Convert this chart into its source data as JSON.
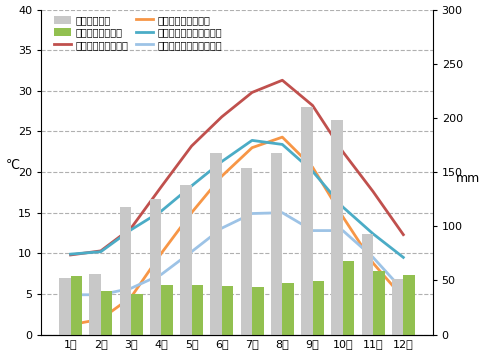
{
  "months": [
    "1月",
    "2月",
    "3月",
    "4月",
    "5月",
    "6月",
    "7月",
    "8月",
    "9月",
    "10月",
    "11月",
    "12月"
  ],
  "tokyo_precip": [
    52,
    56,
    118,
    125,
    138,
    168,
    154,
    168,
    210,
    198,
    93,
    51
  ],
  "london_precip": [
    54,
    40,
    37,
    46,
    46,
    45,
    44,
    48,
    49,
    68,
    59,
    55
  ],
  "tokyo_max_temp": [
    9.8,
    10.3,
    13.1,
    18.2,
    23.2,
    26.8,
    29.8,
    31.3,
    28.2,
    22.5,
    17.6,
    12.3
  ],
  "tokyo_min_temp": [
    1.2,
    1.9,
    4.6,
    10.0,
    15.0,
    19.5,
    23.0,
    24.3,
    20.6,
    14.5,
    8.8,
    4.5
  ],
  "london_max_temp": [
    9.9,
    10.2,
    12.9,
    15.2,
    18.3,
    21.3,
    23.9,
    23.4,
    20.1,
    15.7,
    12.4,
    9.5
  ],
  "london_min_temp": [
    4.9,
    4.9,
    5.7,
    7.4,
    10.2,
    13.1,
    14.9,
    15.0,
    12.8,
    12.8,
    9.5,
    5.4
  ],
  "left_ylim": [
    0,
    40
  ],
  "right_ylim": [
    0,
    300
  ],
  "left_yticks": [
    0,
    5,
    10,
    15,
    20,
    25,
    30,
    35,
    40
  ],
  "right_yticks": [
    0,
    50,
    100,
    150,
    200,
    250,
    300
  ],
  "color_tokyo_precip": "#c8c8c8",
  "color_london_precip": "#92c050",
  "color_tokyo_max": "#c0504d",
  "color_tokyo_min": "#f79646",
  "color_london_max": "#4bacc6",
  "color_london_min": "#9dc3e6",
  "left_label": "℃",
  "right_label": "mm",
  "legend_labels": [
    "東京の降水量",
    "ロンドンの降水量",
    "東京の平均最高気温",
    "東京の平均最低気温",
    "ロンドンの平均最高気温",
    "ロンドンの平均最低気温"
  ],
  "figsize": [
    4.86,
    3.55
  ],
  "dpi": 100
}
